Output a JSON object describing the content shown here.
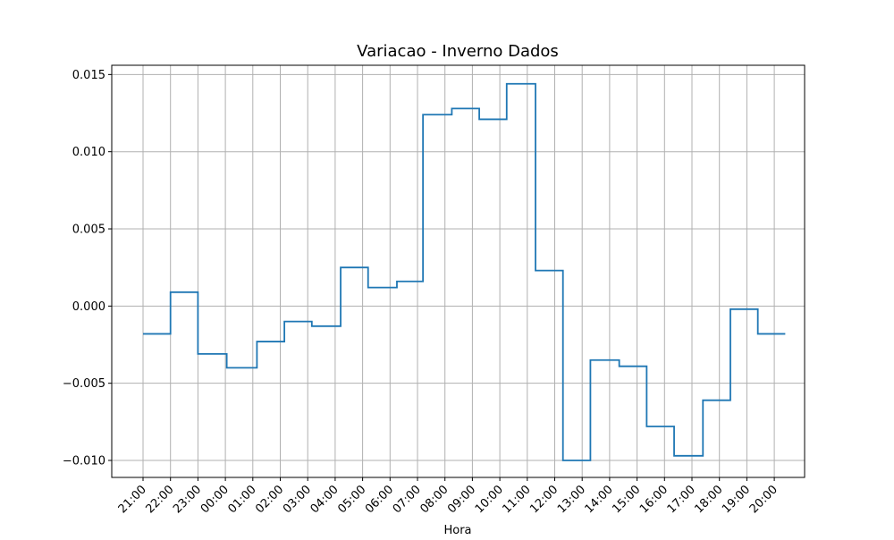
{
  "chart_data": {
    "type": "line",
    "drawstyle": "steps",
    "title": "Variacao - Inverno Dados",
    "xlabel": "Hora",
    "ylabel": "",
    "grid": true,
    "legend": "none",
    "ylim": [
      -0.0111,
      0.0156
    ],
    "yticks": [
      -0.01,
      -0.005,
      0.0,
      0.005,
      0.01,
      0.015
    ],
    "ytick_labels": [
      "−0.010",
      "−0.005",
      "0.000",
      "0.005",
      "0.010",
      "0.015"
    ],
    "x_categories": [
      "21:00",
      "22:00",
      "23:00",
      "00:00",
      "01:00",
      "02:00",
      "03:00",
      "04:00",
      "05:00",
      "06:00",
      "07:00",
      "08:00",
      "09:00",
      "10:00",
      "11:00",
      "12:00",
      "13:00",
      "14:00",
      "15:00",
      "16:00",
      "17:00",
      "18:00",
      "19:00",
      "20:00"
    ],
    "series": [
      {
        "name": "Variacao",
        "color": "#1f77b4",
        "steps": [
          {
            "x0": 0.0,
            "x1": 1.0,
            "y": -0.0018
          },
          {
            "x0": 1.0,
            "x1": 2.0,
            "y": 0.0009
          },
          {
            "x0": 2.0,
            "x1": 3.05,
            "y": -0.0031
          },
          {
            "x0": 3.05,
            "x1": 4.15,
            "y": -0.004
          },
          {
            "x0": 4.15,
            "x1": 5.15,
            "y": -0.0023
          },
          {
            "x0": 5.15,
            "x1": 6.15,
            "y": -0.001
          },
          {
            "x0": 6.15,
            "x1": 7.2,
            "y": -0.0013
          },
          {
            "x0": 7.2,
            "x1": 8.2,
            "y": 0.0025
          },
          {
            "x0": 8.2,
            "x1": 9.25,
            "y": 0.0012
          },
          {
            "x0": 9.25,
            "x1": 10.2,
            "y": 0.0016
          },
          {
            "x0": 10.2,
            "x1": 11.25,
            "y": 0.0124
          },
          {
            "x0": 11.25,
            "x1": 12.25,
            "y": 0.0128
          },
          {
            "x0": 12.25,
            "x1": 13.25,
            "y": 0.0121
          },
          {
            "x0": 13.25,
            "x1": 14.3,
            "y": 0.0144
          },
          {
            "x0": 14.3,
            "x1": 15.3,
            "y": 0.0023
          },
          {
            "x0": 15.3,
            "x1": 16.3,
            "y": -0.01
          },
          {
            "x0": 16.3,
            "x1": 17.35,
            "y": -0.0035
          },
          {
            "x0": 17.35,
            "x1": 18.35,
            "y": -0.0039
          },
          {
            "x0": 18.35,
            "x1": 19.35,
            "y": -0.0078
          },
          {
            "x0": 19.35,
            "x1": 20.4,
            "y": -0.0097
          },
          {
            "x0": 20.4,
            "x1": 21.4,
            "y": -0.0061
          },
          {
            "x0": 21.4,
            "x1": 22.4,
            "y": -0.0002
          },
          {
            "x0": 22.4,
            "x1": 23.4,
            "y": -0.0018
          }
        ]
      }
    ]
  }
}
